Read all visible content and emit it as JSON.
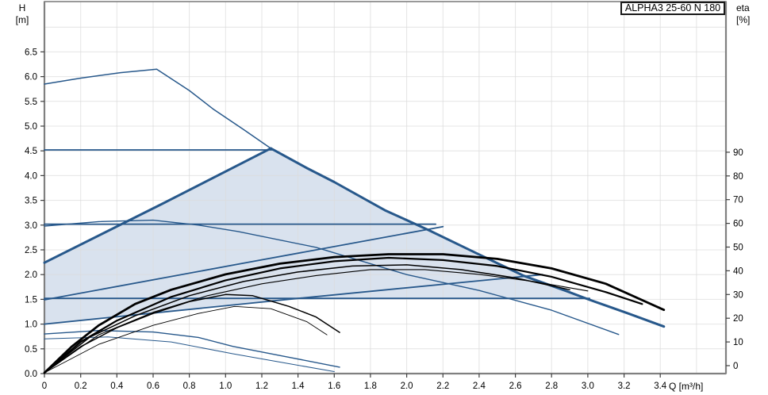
{
  "title_box": {
    "label": "ALPHA3 25-60 N 180"
  },
  "axes": {
    "left": {
      "title_line1": "H",
      "title_line2": "[m]",
      "tick_labels": [
        "0.0",
        "0.5",
        "1.0",
        "1.5",
        "2.0",
        "2.5",
        "3.0",
        "3.5",
        "4.0",
        "4.5",
        "5.0",
        "5.5",
        "6.0",
        "6.5"
      ]
    },
    "right": {
      "title_line1": "eta",
      "title_line2": "[%]",
      "tick_labels": [
        "0",
        "10",
        "20",
        "30",
        "40",
        "50",
        "60",
        "70",
        "80",
        "90"
      ]
    },
    "bottom": {
      "title": "Q [m³/h]",
      "tick_labels": [
        "0",
        "0.2",
        "0.4",
        "0.6",
        "0.8",
        "1.0",
        "1.2",
        "1.4",
        "1.6",
        "1.8",
        "2.0",
        "2.2",
        "2.4",
        "2.6",
        "2.8",
        "3.0",
        "3.2",
        "3.4"
      ]
    }
  },
  "colors": {
    "curve_blue": "#27588b",
    "curve_black": "#000000",
    "region_fill": "#d9e2ee",
    "grid": "#dcdcdc",
    "axis": "#808080",
    "text": "#000000"
  },
  "chart_data": {
    "type": "line",
    "title": "ALPHA3 25-60 N 180",
    "x_axis": {
      "label": "Q [m³/h]",
      "min": 0,
      "max": 3.76,
      "tick_step": 0.2,
      "labeled_max": 3.4
    },
    "y_axis_left": {
      "label": "H [m]",
      "min": 0,
      "max": 7.5,
      "tick_step": 0.5,
      "labeled_max": 6.5
    },
    "y_axis_right": {
      "label": "eta [%]",
      "min": 0,
      "max": 90,
      "tick_step": 10
    },
    "grid": true,
    "region": {
      "name": "control-range-envelope",
      "axis": "H",
      "points": [
        [
          0,
          1.0
        ],
        [
          0.7,
          1.26
        ],
        [
          1.37,
          1.5
        ],
        [
          3.01,
          1.5
        ],
        [
          2.88,
          1.67
        ],
        [
          2.65,
          1.97
        ],
        [
          2.38,
          2.44
        ],
        [
          2.12,
          2.9
        ],
        [
          1.88,
          3.3
        ],
        [
          1.6,
          3.87
        ],
        [
          1.45,
          4.15
        ],
        [
          1.25,
          4.55
        ],
        [
          0.65,
          3.43
        ],
        [
          0,
          2.24
        ]
      ]
    },
    "series": [
      {
        "name": "speed-curve-max-rising",
        "axis": "H",
        "color": "#27588b",
        "width": 1.5,
        "points": [
          [
            0,
            5.85
          ],
          [
            0.2,
            5.97
          ],
          [
            0.42,
            6.08
          ],
          [
            0.62,
            6.15
          ],
          [
            0.8,
            5.72
          ],
          [
            0.93,
            5.35
          ],
          [
            1.1,
            4.93
          ],
          [
            1.25,
            4.55
          ]
        ]
      },
      {
        "name": "speed-curve-max-falling",
        "axis": "H",
        "color": "#27588b",
        "width": 3,
        "points": [
          [
            1.25,
            4.55
          ],
          [
            1.45,
            4.15
          ],
          [
            1.6,
            3.87
          ],
          [
            1.88,
            3.3
          ],
          [
            2.12,
            2.9
          ],
          [
            2.38,
            2.44
          ],
          [
            2.65,
            1.97
          ],
          [
            2.88,
            1.67
          ],
          [
            3.01,
            1.49
          ],
          [
            3.22,
            1.22
          ],
          [
            3.42,
            0.95
          ]
        ]
      },
      {
        "name": "speed-curve-ii",
        "axis": "H",
        "color": "#27588b",
        "width": 1.4,
        "points": [
          [
            0,
            2.98
          ],
          [
            0.3,
            3.07
          ],
          [
            0.6,
            3.1
          ],
          [
            0.85,
            3.0
          ],
          [
            1.07,
            2.87
          ],
          [
            1.5,
            2.55
          ],
          [
            2.0,
            2.0
          ],
          [
            2.4,
            1.68
          ],
          [
            2.8,
            1.28
          ],
          [
            3.17,
            0.79
          ]
        ]
      },
      {
        "name": "speed-curve-i",
        "axis": "H",
        "color": "#27588b",
        "width": 1.4,
        "points": [
          [
            0,
            0.8
          ],
          [
            0.3,
            0.87
          ],
          [
            0.6,
            0.84
          ],
          [
            0.85,
            0.73
          ],
          [
            1.04,
            0.55
          ],
          [
            1.35,
            0.33
          ],
          [
            1.63,
            0.13
          ]
        ]
      },
      {
        "name": "speed-curve-i-lower",
        "axis": "H",
        "color": "#27588b",
        "width": 1,
        "points": [
          [
            0,
            0.7
          ],
          [
            0.35,
            0.74
          ],
          [
            0.7,
            0.64
          ],
          [
            1.04,
            0.4
          ],
          [
            1.35,
            0.2
          ],
          [
            1.6,
            0.04
          ]
        ]
      },
      {
        "name": "prop-pressure-curve-3",
        "axis": "H",
        "color": "#27588b",
        "width": 3,
        "points": [
          [
            0,
            2.24
          ],
          [
            0.65,
            3.43
          ],
          [
            1.25,
            4.55
          ]
        ]
      },
      {
        "name": "prop-pressure-curve-2",
        "axis": "H",
        "color": "#27588b",
        "width": 1.8,
        "points": [
          [
            0,
            1.49
          ],
          [
            1.1,
            2.23
          ],
          [
            2.2,
            2.97
          ]
        ]
      },
      {
        "name": "prop-pressure-curve-1",
        "axis": "H",
        "color": "#27588b",
        "width": 1.8,
        "points": [
          [
            0,
            1.0
          ],
          [
            1.4,
            1.52
          ],
          [
            2.75,
            2.0
          ]
        ]
      },
      {
        "name": "const-pressure-curve-3",
        "axis": "H",
        "color": "#27588b",
        "width": 1.8,
        "points": [
          [
            0,
            4.52
          ],
          [
            1.26,
            4.52
          ]
        ]
      },
      {
        "name": "const-pressure-curve-2",
        "axis": "H",
        "color": "#27588b",
        "width": 1.8,
        "points": [
          [
            0,
            3.02
          ],
          [
            2.16,
            3.02
          ]
        ]
      },
      {
        "name": "const-pressure-curve-1",
        "axis": "H",
        "color": "#27588b",
        "width": 1.8,
        "points": [
          [
            0,
            1.52
          ],
          [
            3.01,
            1.52
          ]
        ]
      },
      {
        "name": "eta-curve-max",
        "axis": "eta",
        "color": "#000000",
        "width": 2.8,
        "points": [
          [
            0,
            -3
          ],
          [
            0.15,
            8
          ],
          [
            0.3,
            17
          ],
          [
            0.5,
            26
          ],
          [
            0.7,
            32
          ],
          [
            1.0,
            38.5
          ],
          [
            1.3,
            43
          ],
          [
            1.6,
            45.8
          ],
          [
            1.9,
            47
          ],
          [
            2.2,
            47
          ],
          [
            2.5,
            45
          ],
          [
            2.8,
            41
          ],
          [
            3.1,
            34.5
          ],
          [
            3.42,
            23.5
          ]
        ]
      },
      {
        "name": "eta-curve-2",
        "axis": "eta",
        "color": "#000000",
        "width": 2.2,
        "points": [
          [
            0,
            -3
          ],
          [
            0.2,
            10
          ],
          [
            0.4,
            19
          ],
          [
            0.7,
            29
          ],
          [
            1.0,
            36
          ],
          [
            1.3,
            41
          ],
          [
            1.6,
            44
          ],
          [
            1.9,
            45.5
          ],
          [
            2.2,
            44.5
          ],
          [
            2.5,
            42
          ],
          [
            2.8,
            37.5
          ],
          [
            3.1,
            31
          ],
          [
            3.3,
            26
          ]
        ]
      },
      {
        "name": "eta-curve-3",
        "axis": "eta",
        "color": "#000000",
        "width": 1.5,
        "points": [
          [
            0,
            -3
          ],
          [
            0.25,
            12
          ],
          [
            0.5,
            21
          ],
          [
            0.8,
            29.5
          ],
          [
            1.1,
            35.5
          ],
          [
            1.4,
            39.5
          ],
          [
            1.7,
            42
          ],
          [
            2.0,
            42.5
          ],
          [
            2.3,
            40.5
          ],
          [
            2.6,
            37
          ],
          [
            2.9,
            32
          ]
        ]
      },
      {
        "name": "eta-curve-4",
        "axis": "eta",
        "color": "#000000",
        "width": 1.1,
        "points": [
          [
            0,
            -3
          ],
          [
            0.3,
            13
          ],
          [
            0.6,
            22.5
          ],
          [
            0.9,
            29.5
          ],
          [
            1.2,
            34.5
          ],
          [
            1.5,
            38
          ],
          [
            1.8,
            40.5
          ],
          [
            2.1,
            40.5
          ],
          [
            2.4,
            38.5
          ],
          [
            2.7,
            35.5
          ],
          [
            3.0,
            31.5
          ]
        ]
      },
      {
        "name": "eta-curve-speed-i",
        "axis": "eta",
        "color": "#000000",
        "width": 1.5,
        "points": [
          [
            0,
            -3
          ],
          [
            0.2,
            8
          ],
          [
            0.4,
            16
          ],
          [
            0.6,
            22
          ],
          [
            0.8,
            27
          ],
          [
            1.0,
            30
          ],
          [
            1.15,
            29.5
          ],
          [
            1.35,
            25
          ],
          [
            1.5,
            20.5
          ],
          [
            1.63,
            14
          ]
        ]
      },
      {
        "name": "eta-curve-speed-i-thin",
        "axis": "eta",
        "color": "#000000",
        "width": 0.9,
        "points": [
          [
            0,
            -3
          ],
          [
            0.3,
            9
          ],
          [
            0.6,
            17
          ],
          [
            0.85,
            22
          ],
          [
            1.05,
            25
          ],
          [
            1.25,
            24
          ],
          [
            1.45,
            18.5
          ],
          [
            1.56,
            13
          ]
        ]
      }
    ]
  }
}
